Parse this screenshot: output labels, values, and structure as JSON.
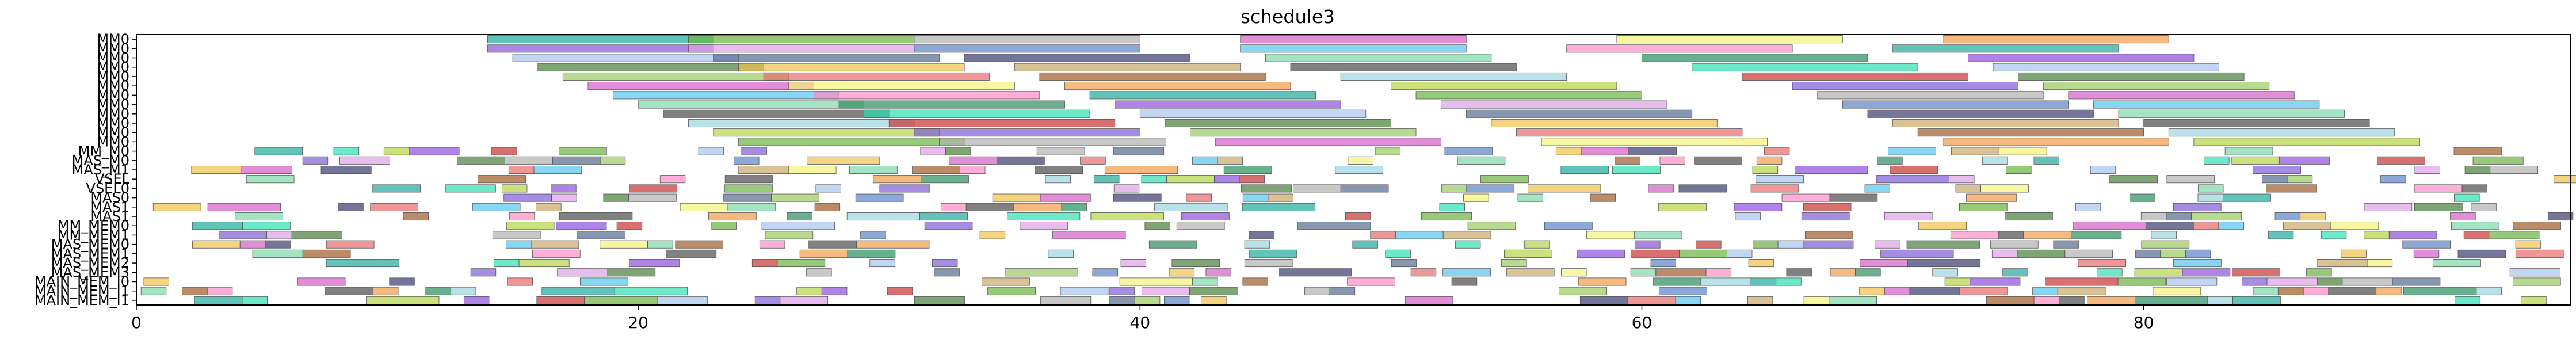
{
  "chart_data": {
    "type": "gantt",
    "title": "schedule3",
    "xlabel": "",
    "ylabel": "",
    "xlim": [
      0,
      97
    ],
    "x_ticks": [
      0,
      20,
      40,
      60,
      80
    ],
    "rows": [
      "MM0",
      "MM0",
      "MM0",
      "MM0",
      "MM0",
      "MM0",
      "MM0",
      "MM0",
      "MM0",
      "MM0",
      "MM0",
      "MM0",
      "MM_M0",
      "MAS_M0",
      "MAS_M1",
      "VSEL",
      "VSEL0",
      "MAS0",
      "MAS1",
      "MAS1",
      "MM_MEM0",
      "MM_MEM1",
      "MAS_MEM0",
      "MAS_MEM1",
      "MAS_MEM2",
      "MAS_MEM3",
      "MAIN_MEM_I0",
      "MAIN_MEM_I1",
      "MAIN_MEM_I1"
    ],
    "row_label_step": 1,
    "palette": [
      "#1fa99a",
      "#2ee0b0",
      "#b5d645",
      "#8f4fe0",
      "#c93333",
      "#6bb33e",
      "#a8c4f0",
      "#7d5cd6",
      "#e0a0e8",
      "#4a7f3a",
      "#b0b0b0",
      "#556b8f",
      "#9acb5e",
      "#5b83c9",
      "#f0c24a",
      "#d45cc8",
      "#3a3a6e",
      "#e86a6a",
      "#54c4f0",
      "#c8a86a",
      "#f4f47a",
      "#7cd9a8",
      "#a05b2a",
      "#ff8cc6",
      "#4b4b4b",
      "#f29b4a",
      "#2a8f5e",
      "#9ad4e0"
    ],
    "mm_bars": [
      [
        [
          14,
          9
        ],
        [
          22,
          9
        ],
        [
          31,
          9
        ],
        [
          44,
          9
        ],
        [
          59,
          9
        ],
        [
          72,
          9
        ]
      ],
      [
        [
          14,
          9
        ],
        [
          22,
          9
        ],
        [
          31,
          9
        ],
        [
          44,
          9
        ],
        [
          57,
          9
        ],
        [
          70,
          9
        ]
      ],
      [
        [
          15,
          9
        ],
        [
          23,
          9
        ],
        [
          33,
          9
        ],
        [
          45,
          9
        ],
        [
          60,
          9
        ],
        [
          73,
          9
        ]
      ],
      [
        [
          16,
          9
        ],
        [
          24,
          9
        ],
        [
          35,
          9
        ],
        [
          46,
          9
        ],
        [
          62,
          9
        ],
        [
          74,
          9
        ]
      ],
      [
        [
          17,
          9
        ],
        [
          25,
          9
        ],
        [
          36,
          9
        ],
        [
          48,
          9
        ],
        [
          64,
          9
        ],
        [
          75,
          9
        ]
      ],
      [
        [
          18,
          9
        ],
        [
          26,
          9
        ],
        [
          37,
          9
        ],
        [
          50,
          9
        ],
        [
          66,
          9
        ],
        [
          76,
          9
        ]
      ],
      [
        [
          19,
          9
        ],
        [
          27,
          9
        ],
        [
          38,
          9
        ],
        [
          51,
          9
        ],
        [
          67,
          9
        ],
        [
          77,
          9
        ]
      ],
      [
        [
          20,
          9
        ],
        [
          28,
          9
        ],
        [
          39,
          9
        ],
        [
          52,
          9
        ],
        [
          68,
          9
        ],
        [
          78,
          9
        ]
      ],
      [
        [
          21,
          9
        ],
        [
          29,
          9
        ],
        [
          40,
          9
        ],
        [
          53,
          9
        ],
        [
          69,
          9
        ],
        [
          79,
          9
        ]
      ],
      [
        [
          22,
          9
        ],
        [
          30,
          9
        ],
        [
          41,
          9
        ],
        [
          54,
          9
        ],
        [
          70,
          9
        ],
        [
          80,
          9
        ]
      ],
      [
        [
          23,
          9
        ],
        [
          31,
          9
        ],
        [
          42,
          9
        ],
        [
          55,
          9
        ],
        [
          71,
          9
        ],
        [
          81,
          9
        ]
      ],
      [
        [
          24,
          9
        ],
        [
          32,
          9
        ],
        [
          43,
          9
        ],
        [
          56,
          9
        ],
        [
          72,
          9
        ],
        [
          82,
          9
        ]
      ]
    ]
  }
}
